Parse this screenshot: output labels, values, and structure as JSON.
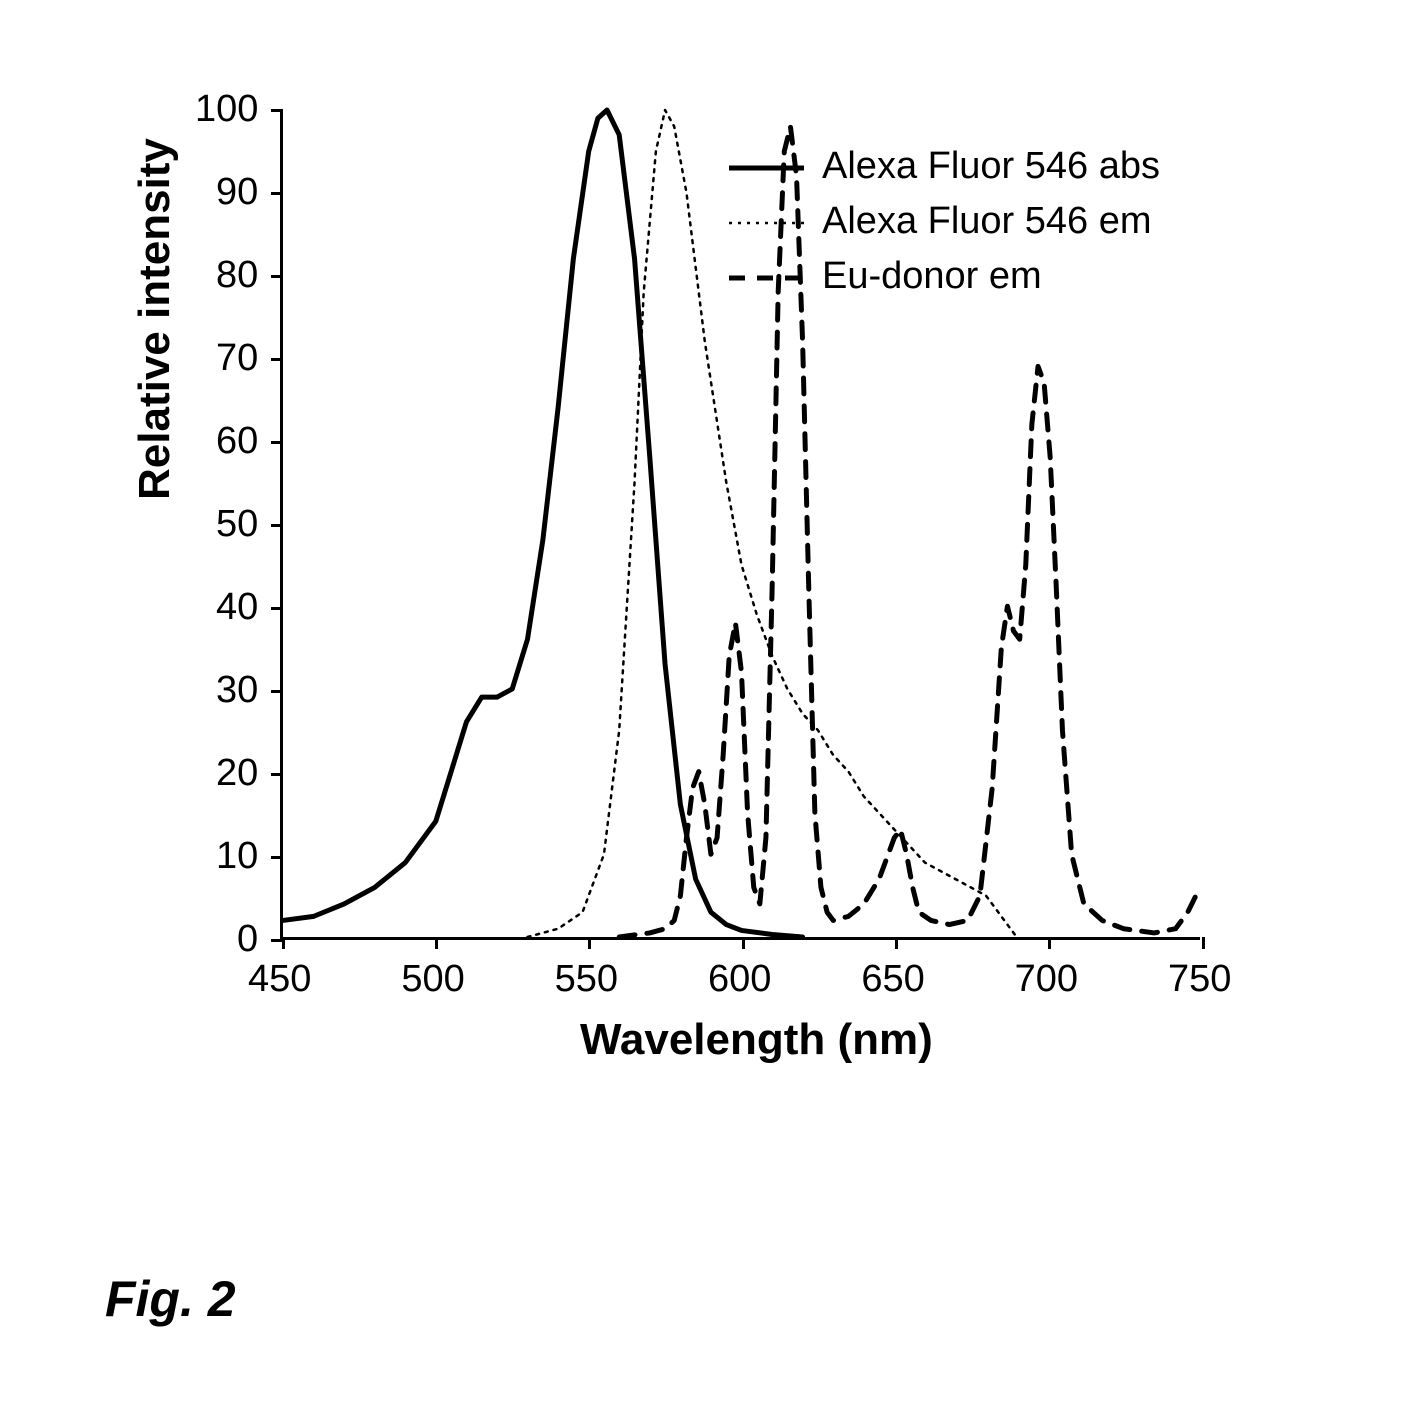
{
  "chart": {
    "type": "line",
    "xlabel": "Wavelength (nm)",
    "ylabel": "Relative intensity",
    "xlabel_fontsize": 44,
    "ylabel_fontsize": 44,
    "tick_fontsize": 38,
    "xlim": [
      450,
      750
    ],
    "ylim": [
      0,
      100
    ],
    "xticks": [
      450,
      500,
      550,
      600,
      650,
      700,
      750
    ],
    "yticks": [
      0,
      10,
      20,
      30,
      40,
      50,
      60,
      70,
      80,
      90,
      100
    ],
    "background_color": "#ffffff",
    "axis_color": "#000000",
    "figure_label": "Fig. 2",
    "legend": {
      "position": "upper-right",
      "items": [
        {
          "label": "Alexa Fluor 546 abs",
          "style": "solid",
          "width": 5,
          "color": "#000000"
        },
        {
          "label": "Alexa Fluor 546 em",
          "style": "dotted",
          "width": 2.5,
          "color": "#000000"
        },
        {
          "label": "Eu-donor em",
          "style": "dashed",
          "width": 5,
          "color": "#000000"
        }
      ]
    },
    "series": [
      {
        "name": "Alexa Fluor 546 abs",
        "style": "solid",
        "width": 5,
        "color": "#000000",
        "data": [
          [
            450,
            2
          ],
          [
            460,
            2.5
          ],
          [
            470,
            4
          ],
          [
            480,
            6
          ],
          [
            490,
            9
          ],
          [
            500,
            14
          ],
          [
            505,
            20
          ],
          [
            510,
            26
          ],
          [
            515,
            29
          ],
          [
            520,
            29
          ],
          [
            525,
            30
          ],
          [
            530,
            36
          ],
          [
            535,
            48
          ],
          [
            540,
            64
          ],
          [
            545,
            82
          ],
          [
            550,
            95
          ],
          [
            553,
            99
          ],
          [
            556,
            100
          ],
          [
            560,
            97
          ],
          [
            565,
            82
          ],
          [
            570,
            58
          ],
          [
            575,
            33
          ],
          [
            580,
            16
          ],
          [
            585,
            7
          ],
          [
            590,
            3
          ],
          [
            595,
            1.5
          ],
          [
            600,
            0.8
          ],
          [
            610,
            0.3
          ],
          [
            620,
            0
          ]
        ]
      },
      {
        "name": "Alexa Fluor 546 em",
        "style": "dotted",
        "width": 2.5,
        "color": "#000000",
        "data": [
          [
            530,
            0
          ],
          [
            540,
            1
          ],
          [
            548,
            3
          ],
          [
            555,
            10
          ],
          [
            560,
            25
          ],
          [
            565,
            55
          ],
          [
            568,
            78
          ],
          [
            572,
            95
          ],
          [
            575,
            100
          ],
          [
            578,
            98
          ],
          [
            582,
            90
          ],
          [
            588,
            72
          ],
          [
            595,
            55
          ],
          [
            600,
            45
          ],
          [
            605,
            39
          ],
          [
            610,
            34
          ],
          [
            615,
            30
          ],
          [
            620,
            27
          ],
          [
            625,
            25
          ],
          [
            630,
            22
          ],
          [
            635,
            20
          ],
          [
            640,
            17
          ],
          [
            645,
            15
          ],
          [
            650,
            13
          ],
          [
            655,
            11
          ],
          [
            660,
            9
          ],
          [
            665,
            8
          ],
          [
            670,
            7
          ],
          [
            680,
            5
          ],
          [
            690,
            0
          ]
        ]
      },
      {
        "name": "Eu-donor em",
        "style": "dashed",
        "width": 5,
        "color": "#000000",
        "data": [
          [
            560,
            0
          ],
          [
            570,
            0.5
          ],
          [
            575,
            1
          ],
          [
            578,
            2
          ],
          [
            580,
            5
          ],
          [
            582,
            12
          ],
          [
            584,
            18
          ],
          [
            586,
            20
          ],
          [
            588,
            16
          ],
          [
            590,
            10
          ],
          [
            592,
            12
          ],
          [
            594,
            22
          ],
          [
            596,
            34
          ],
          [
            598,
            38
          ],
          [
            600,
            32
          ],
          [
            602,
            15
          ],
          [
            604,
            6
          ],
          [
            606,
            4
          ],
          [
            608,
            12
          ],
          [
            610,
            42
          ],
          [
            612,
            78
          ],
          [
            614,
            95
          ],
          [
            616,
            98
          ],
          [
            618,
            92
          ],
          [
            620,
            72
          ],
          [
            622,
            42
          ],
          [
            624,
            15
          ],
          [
            626,
            6
          ],
          [
            628,
            3
          ],
          [
            630,
            2
          ],
          [
            635,
            2.5
          ],
          [
            640,
            4
          ],
          [
            645,
            7
          ],
          [
            648,
            10
          ],
          [
            650,
            12
          ],
          [
            652,
            13
          ],
          [
            654,
            10
          ],
          [
            656,
            6
          ],
          [
            658,
            3
          ],
          [
            662,
            2
          ],
          [
            668,
            1.5
          ],
          [
            674,
            2
          ],
          [
            678,
            5
          ],
          [
            682,
            18
          ],
          [
            685,
            35
          ],
          [
            687,
            40
          ],
          [
            689,
            37
          ],
          [
            691,
            36
          ],
          [
            693,
            45
          ],
          [
            695,
            62
          ],
          [
            697,
            69
          ],
          [
            699,
            67
          ],
          [
            701,
            58
          ],
          [
            703,
            42
          ],
          [
            705,
            25
          ],
          [
            708,
            10
          ],
          [
            712,
            4
          ],
          [
            718,
            2
          ],
          [
            725,
            1
          ],
          [
            735,
            0.5
          ],
          [
            742,
            1
          ],
          [
            746,
            3
          ],
          [
            750,
            6
          ]
        ]
      }
    ]
  }
}
